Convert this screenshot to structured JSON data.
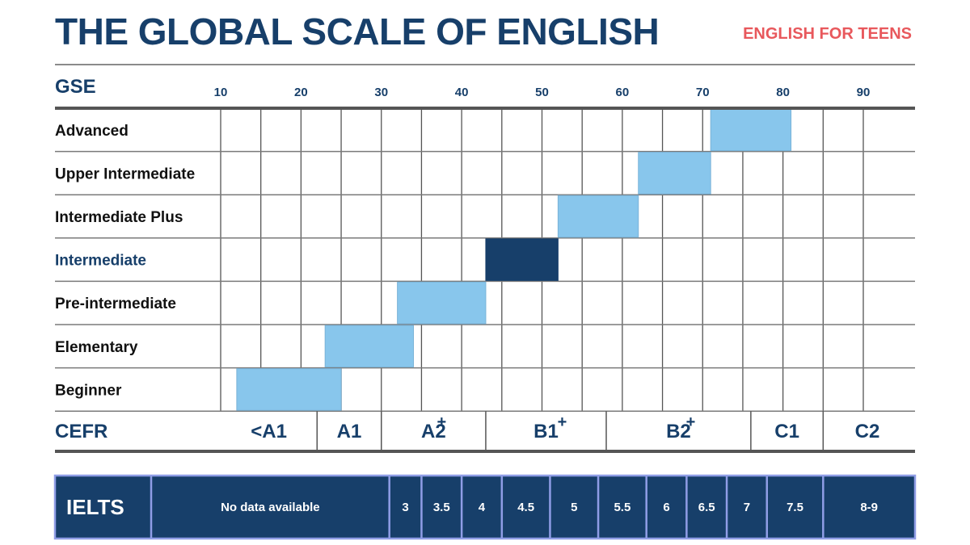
{
  "title": "THE GLOBAL SCALE OF ENGLISH",
  "subtitle": "ENGLISH FOR TEENS",
  "colors": {
    "navy": "#173f6a",
    "band": "#88c6ec",
    "highlight": "#173f6a",
    "accent": "#e8585c",
    "ielts_border": "#8f9de6"
  },
  "chart_data": {
    "type": "bar",
    "x_axis_label": "GSE",
    "x_ticks": [
      10,
      20,
      30,
      40,
      50,
      60,
      70,
      80,
      90
    ],
    "xlim": [
      10,
      96
    ],
    "grid": true,
    "levels": [
      {
        "name": "Advanced",
        "start": 71,
        "end": 81,
        "highlight": false
      },
      {
        "name": "Upper Intermediate",
        "start": 62,
        "end": 71,
        "highlight": false
      },
      {
        "name": "Intermediate Plus",
        "start": 52,
        "end": 62,
        "highlight": false
      },
      {
        "name": "Intermediate",
        "start": 43,
        "end": 52,
        "highlight": true
      },
      {
        "name": "Pre-intermediate",
        "start": 32,
        "end": 43,
        "highlight": false
      },
      {
        "name": "Elementary",
        "start": 23,
        "end": 34,
        "highlight": false
      },
      {
        "name": "Beginner",
        "start": 12,
        "end": 25,
        "highlight": false
      }
    ],
    "cefr_label": "CEFR",
    "cefr": [
      {
        "label": "<A1",
        "start": 10,
        "end": 22,
        "plus_at": null
      },
      {
        "label": "A1",
        "start": 22,
        "end": 30,
        "plus_at": null
      },
      {
        "label": "A2",
        "start": 30,
        "end": 43,
        "plus_at": 36
      },
      {
        "label": "B1",
        "start": 43,
        "end": 58,
        "plus_at": 51
      },
      {
        "label": "B2",
        "start": 58,
        "end": 76,
        "plus_at": 67
      },
      {
        "label": "C1",
        "start": 76,
        "end": 85,
        "plus_at": null
      },
      {
        "label": "C2",
        "start": 85,
        "end": 96,
        "plus_at": null
      }
    ],
    "ielts_label": "IELTS",
    "ielts": [
      {
        "label": "No data available",
        "start": 10,
        "end": 31
      },
      {
        "label": "3",
        "start": 31,
        "end": 35
      },
      {
        "label": "3.5",
        "start": 35,
        "end": 40
      },
      {
        "label": "4",
        "start": 40,
        "end": 45
      },
      {
        "label": "4.5",
        "start": 45,
        "end": 51
      },
      {
        "label": "5",
        "start": 51,
        "end": 57
      },
      {
        "label": "5.5",
        "start": 57,
        "end": 63
      },
      {
        "label": "6",
        "start": 63,
        "end": 68
      },
      {
        "label": "6.5",
        "start": 68,
        "end": 73
      },
      {
        "label": "7",
        "start": 73,
        "end": 78
      },
      {
        "label": "7.5",
        "start": 78,
        "end": 85
      },
      {
        "label": "8-9",
        "start": 85,
        "end": 96
      }
    ]
  }
}
